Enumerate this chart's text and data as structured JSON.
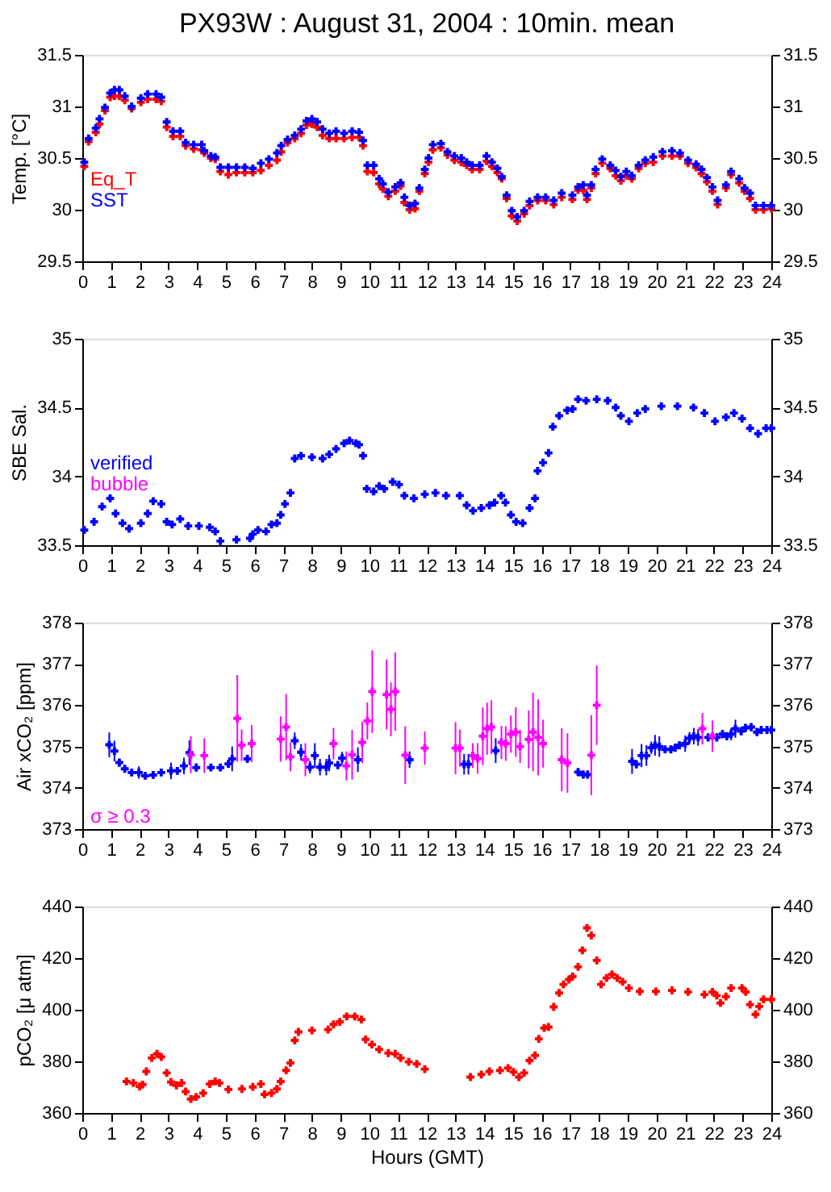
{
  "chart_data": [
    {
      "type": "scatter",
      "title": "PX93W : August 31, 2004 : 10min. mean",
      "ylabel": "Temp. [°C]",
      "xlim": [
        0,
        24
      ],
      "xticks": [
        0,
        1,
        2,
        3,
        4,
        5,
        6,
        7,
        8,
        9,
        10,
        11,
        12,
        13,
        14,
        15,
        16,
        17,
        18,
        19,
        20,
        21,
        22,
        23,
        24
      ],
      "ylim": [
        29.5,
        31.5
      ],
      "yticks": [
        29.5,
        30,
        30.5,
        31,
        31.5
      ],
      "y2lim": [
        29.5,
        31.5
      ],
      "y2ticks": [
        29.5,
        30,
        30.5,
        31,
        31.5
      ],
      "marker": "cross",
      "legend": "bottom left",
      "grid": false,
      "x": [
        0.07,
        0.22,
        0.47,
        0.6,
        0.79,
        0.97,
        1.12,
        1.29,
        1.48,
        1.72,
        2.04,
        2.28,
        2.57,
        2.75,
        2.94,
        3.16,
        3.41,
        3.6,
        3.88,
        4.16,
        4.25,
        4.48,
        4.63,
        4.81,
        5.09,
        5.37,
        5.66,
        5.94,
        6.22,
        6.5,
        6.78,
        6.93,
        7.15,
        7.4,
        7.62,
        7.81,
        8.0,
        8.18,
        8.37,
        8.6,
        8.84,
        9.12,
        9.4,
        9.64,
        9.78,
        9.93,
        10.15,
        10.34,
        10.47,
        10.66,
        10.9,
        11.09,
        11.22,
        11.4,
        11.59,
        11.74,
        11.93,
        12.06,
        12.21,
        12.49,
        12.72,
        12.96,
        13.2,
        13.39,
        13.58,
        13.84,
        14.08,
        14.27,
        14.46,
        14.61,
        14.78,
        14.96,
        15.15,
        15.39,
        15.58,
        15.86,
        16.14,
        16.42,
        16.7,
        17.07,
        17.27,
        17.45,
        17.58,
        17.73,
        17.88,
        18.11,
        18.39,
        18.58,
        18.76,
        18.95,
        19.14,
        19.38,
        19.61,
        19.89,
        20.21,
        20.54,
        20.82,
        21.1,
        21.38,
        21.57,
        21.76,
        21.95,
        22.13,
        22.42,
        22.6,
        22.88,
        23.07,
        23.26,
        23.45,
        23.73,
        24.0
      ],
      "series": [
        {
          "name": "Eq_T",
          "color": "#ff0000",
          "values": [
            30.42,
            30.66,
            30.75,
            30.83,
            30.96,
            31.09,
            31.1,
            31.1,
            31.06,
            30.98,
            31.04,
            31.07,
            31.07,
            31.05,
            30.8,
            30.71,
            30.71,
            30.62,
            30.59,
            30.58,
            30.55,
            30.5,
            30.49,
            30.37,
            30.34,
            30.36,
            30.36,
            30.36,
            30.38,
            30.43,
            30.48,
            30.56,
            30.65,
            30.69,
            30.74,
            30.82,
            30.83,
            30.8,
            30.72,
            30.69,
            30.69,
            30.69,
            30.7,
            30.7,
            30.62,
            30.37,
            30.36,
            30.25,
            30.2,
            30.13,
            30.18,
            30.23,
            30.07,
            30.0,
            30.01,
            30.18,
            30.35,
            30.46,
            30.58,
            30.6,
            30.53,
            30.48,
            30.46,
            30.43,
            30.39,
            30.39,
            30.47,
            30.42,
            30.36,
            30.3,
            30.11,
            29.94,
            29.89,
            29.96,
            30.04,
            30.09,
            30.09,
            30.05,
            30.12,
            30.1,
            30.19,
            30.19,
            30.1,
            30.21,
            30.35,
            30.45,
            30.4,
            30.33,
            30.28,
            30.33,
            30.3,
            30.4,
            30.45,
            30.46,
            30.52,
            30.52,
            30.52,
            30.45,
            30.41,
            30.35,
            30.27,
            30.18,
            30.05,
            30.21,
            30.34,
            30.26,
            30.18,
            30.11,
            30.0,
            30.0,
            30.01
          ]
        },
        {
          "name": "SST",
          "color": "#0000ff",
          "values": [
            30.46,
            30.69,
            30.79,
            30.88,
            30.99,
            31.13,
            31.16,
            31.16,
            31.1,
            31.0,
            31.08,
            31.12,
            31.12,
            31.09,
            30.85,
            30.76,
            30.76,
            30.65,
            30.63,
            30.63,
            30.57,
            30.52,
            30.51,
            30.41,
            30.41,
            30.41,
            30.41,
            30.4,
            30.45,
            30.49,
            30.55,
            30.62,
            30.68,
            30.72,
            30.78,
            30.86,
            30.88,
            30.85,
            30.78,
            30.74,
            30.76,
            30.74,
            30.76,
            30.75,
            30.67,
            30.43,
            30.43,
            30.3,
            30.25,
            30.17,
            30.22,
            30.26,
            30.12,
            30.04,
            30.06,
            30.21,
            30.39,
            30.5,
            30.63,
            30.64,
            30.56,
            30.52,
            30.5,
            30.46,
            30.43,
            30.43,
            30.52,
            30.46,
            30.4,
            30.32,
            30.14,
            29.99,
            29.93,
            29.99,
            30.08,
            30.12,
            30.12,
            30.09,
            30.16,
            30.14,
            30.22,
            30.24,
            30.14,
            30.24,
            30.39,
            30.49,
            30.43,
            30.38,
            30.32,
            30.37,
            30.33,
            30.43,
            30.48,
            30.51,
            30.56,
            30.57,
            30.55,
            30.48,
            30.44,
            30.39,
            30.31,
            30.22,
            30.09,
            30.24,
            30.37,
            30.3,
            30.21,
            30.16,
            30.04,
            30.04,
            30.04
          ]
        }
      ]
    },
    {
      "type": "scatter",
      "ylabel": "SBE Sal.",
      "xlim": [
        0,
        24
      ],
      "xticks": [
        0,
        1,
        2,
        3,
        4,
        5,
        6,
        7,
        8,
        9,
        10,
        11,
        12,
        13,
        14,
        15,
        16,
        17,
        18,
        19,
        20,
        21,
        22,
        23,
        24
      ],
      "ylim": [
        33.5,
        35
      ],
      "yticks": [
        33.5,
        34,
        34.5,
        35
      ],
      "y2lim": [
        33.5,
        35
      ],
      "y2ticks": [
        33.5,
        34,
        34.5,
        35
      ],
      "marker": "cross",
      "legend": "bottom left",
      "grid": false,
      "series": [
        {
          "name": "verified",
          "color": "#0000ff",
          "x": [
            0.07,
            0.41,
            0.69,
            0.97,
            1.16,
            1.4,
            1.63,
            2.04,
            2.28,
            2.47,
            2.75,
            2.94,
            3.13,
            3.41,
            3.69,
            4.06,
            4.44,
            4.63,
            4.81,
            5.37,
            5.84,
            5.94,
            6.12,
            6.4,
            6.59,
            6.78,
            6.91,
            7.06,
            7.25,
            7.4,
            7.62,
            8.0,
            8.37,
            8.6,
            8.84,
            9.12,
            9.31,
            9.53,
            9.64,
            9.78,
            9.91,
            10.15,
            10.34,
            10.52,
            10.81,
            11.03,
            11.22,
            11.55,
            11.93,
            12.3,
            12.67,
            13.15,
            13.39,
            13.61,
            13.9,
            14.18,
            14.36,
            14.59,
            14.74,
            14.93,
            15.11,
            15.34,
            15.58,
            15.77,
            15.86,
            16.05,
            16.24,
            16.39,
            16.61,
            16.89,
            17.08,
            17.27,
            17.55,
            17.92,
            18.3,
            18.58,
            18.76,
            19.04,
            19.33,
            19.61,
            20.17,
            20.73,
            21.29,
            21.67,
            22.04,
            22.42,
            22.7,
            22.98,
            23.26,
            23.54,
            23.82,
            24.0
          ],
          "values": [
            33.61,
            33.67,
            33.78,
            33.84,
            33.73,
            33.66,
            33.62,
            33.66,
            33.73,
            33.82,
            33.8,
            33.67,
            33.65,
            33.69,
            33.64,
            33.64,
            33.63,
            33.6,
            33.53,
            33.54,
            33.55,
            33.58,
            33.61,
            33.6,
            33.65,
            33.66,
            33.72,
            33.8,
            33.88,
            34.13,
            34.15,
            34.14,
            34.13,
            34.16,
            34.2,
            34.24,
            34.26,
            34.24,
            34.23,
            34.15,
            33.91,
            33.89,
            33.93,
            33.91,
            33.96,
            33.94,
            33.86,
            33.84,
            33.87,
            33.88,
            33.86,
            33.86,
            33.79,
            33.75,
            33.77,
            33.79,
            33.81,
            33.86,
            33.81,
            33.72,
            33.67,
            33.66,
            33.77,
            33.84,
            34.04,
            34.1,
            34.17,
            34.36,
            34.44,
            34.48,
            34.49,
            34.56,
            34.55,
            34.56,
            34.55,
            34.5,
            34.44,
            34.4,
            34.46,
            34.49,
            34.51,
            34.51,
            34.5,
            34.46,
            34.4,
            34.43,
            34.46,
            34.42,
            34.35,
            34.31,
            34.35,
            34.35
          ]
        },
        {
          "name": "bubble",
          "color": "#ff00ff"
        }
      ]
    },
    {
      "type": "scatter",
      "ylabel": "Air xCO₂ [ppm]",
      "xlim": [
        0,
        24
      ],
      "xticks": [
        0,
        1,
        2,
        3,
        4,
        5,
        6,
        7,
        8,
        9,
        10,
        11,
        12,
        13,
        14,
        15,
        16,
        17,
        18,
        19,
        20,
        21,
        22,
        23,
        24
      ],
      "ylim": [
        373,
        378
      ],
      "yticks": [
        373,
        374,
        375,
        376,
        377,
        378
      ],
      "y2lim": [
        373,
        378
      ],
      "y2ticks": [
        373,
        374,
        375,
        376,
        377,
        378
      ],
      "marker": "cross",
      "legend": "bottom left",
      "grid": false,
      "series": [
        {
          "color": "#0000ff",
          "x": [
            0.94,
            1.12,
            1.29,
            1.48,
            1.72,
            1.97,
            2.19,
            2.47,
            2.75,
            3.09,
            3.31,
            3.54,
            3.73,
            3.97,
            4.48,
            4.81,
            5.09,
            5.22,
            5.75,
            7.4,
            7.62,
            7.93,
            8.1,
            8.28,
            8.5,
            8.6,
            8.9,
            9.05,
            9.6,
            11.4,
            13.3,
            13.45,
            14.4,
            17.27,
            17.45,
            17.6,
            19.15,
            19.3,
            19.48,
            19.65,
            19.82,
            19.95,
            20.1,
            20.3,
            20.5,
            20.65,
            20.8,
            21.0,
            21.15,
            21.3,
            21.45,
            21.8,
            22.1,
            22.3,
            22.45,
            22.6,
            22.75,
            22.95,
            23.1,
            23.3,
            23.5,
            23.65,
            23.85,
            24.0
          ],
          "values": [
            375.04,
            374.89,
            374.61,
            374.46,
            374.37,
            374.37,
            374.29,
            374.31,
            374.37,
            374.41,
            374.41,
            374.53,
            374.85,
            374.49,
            374.49,
            374.49,
            374.58,
            374.7,
            374.7,
            375.14,
            374.86,
            374.5,
            374.78,
            374.5,
            374.5,
            374.6,
            374.55,
            374.72,
            374.68,
            374.68,
            374.57,
            374.57,
            374.9,
            374.38,
            374.32,
            374.32,
            374.64,
            374.57,
            374.78,
            374.78,
            374.97,
            375.03,
            375.0,
            374.93,
            374.93,
            374.97,
            375.03,
            375.07,
            375.2,
            375.25,
            375.22,
            375.22,
            375.22,
            375.3,
            375.25,
            375.3,
            375.43,
            375.37,
            375.45,
            375.47,
            375.35,
            375.4,
            375.4,
            375.4
          ],
          "errors": [
            0.3,
            0.25,
            0.1,
            0.05,
            0.05,
            0.15,
            0.05,
            0.05,
            0.05,
            0.2,
            0.05,
            0.2,
            0.3,
            0.1,
            0.05,
            0.05,
            0.1,
            0.3,
            0.1,
            0.2,
            0.2,
            0.15,
            0.3,
            0.2,
            0.2,
            0.2,
            0.1,
            0.15,
            0.3,
            0.2,
            0.25,
            0.25,
            0.3,
            0.1,
            0.1,
            0.1,
            0.3,
            0.1,
            0.28,
            0.25,
            0.15,
            0.25,
            0.25,
            0.05,
            0.1,
            0.1,
            0.1,
            0.2,
            0.15,
            0.2,
            0.2,
            0.1,
            0.1,
            0.1,
            0.1,
            0.15,
            0.22,
            0.1,
            0.1,
            0.1,
            0.1,
            0.1,
            0.1,
            0.05
          ]
        },
        {
          "name": "σ ≥ 0.3",
          "color": "#ff00ff",
          "x": [
            3.78,
            4.25,
            5.4,
            5.55,
            5.9,
            6.91,
            7.1,
            7.25,
            7.77,
            8.75,
            9.2,
            9.4,
            9.75,
            9.93,
            10.1,
            10.6,
            10.75,
            10.9,
            11.25,
            11.93,
            13.0,
            13.15,
            13.6,
            13.77,
            13.95,
            14.1,
            14.25,
            14.6,
            14.75,
            14.93,
            15.1,
            15.25,
            15.55,
            15.7,
            15.88,
            16.05,
            16.7,
            16.9,
            17.73,
            17.92,
            21.6,
            21.95
          ],
          "values": [
            374.8,
            374.78,
            375.68,
            375.03,
            375.07,
            375.18,
            375.47,
            374.75,
            374.68,
            375.07,
            374.53,
            374.8,
            375.1,
            375.62,
            376.33,
            376.26,
            375.9,
            376.33,
            374.79,
            374.96,
            374.96,
            374.96,
            374.78,
            374.71,
            375.25,
            375.43,
            375.47,
            375.1,
            375.07,
            375.3,
            375.35,
            375.0,
            375.17,
            375.35,
            375.22,
            375.07,
            374.68,
            374.6,
            374.79,
            376.0,
            375.43,
            375.25
          ],
          "errors": [
            0.45,
            0.42,
            1.05,
            0.38,
            0.45,
            0.55,
            0.8,
            0.35,
            0.4,
            0.38,
            0.35,
            0.6,
            0.5,
            0.45,
            1.0,
            0.85,
            0.65,
            0.95,
            0.7,
            0.4,
            0.63,
            0.45,
            0.3,
            0.37,
            0.7,
            0.63,
            0.65,
            0.4,
            0.42,
            0.45,
            0.6,
            0.4,
            0.7,
            0.95,
            0.92,
            0.58,
            0.76,
            0.72,
            0.97,
            0.96,
            0.38,
            0.38
          ]
        }
      ]
    },
    {
      "type": "scatter",
      "ylabel": "pCO₂ [μ atm]",
      "xlabel": "Hours (GMT)",
      "xlim": [
        0,
        24
      ],
      "xticks": [
        0,
        1,
        2,
        3,
        4,
        5,
        6,
        7,
        8,
        9,
        10,
        11,
        12,
        13,
        14,
        15,
        16,
        17,
        18,
        19,
        20,
        21,
        22,
        23,
        24
      ],
      "ylim": [
        360,
        440
      ],
      "yticks": [
        360,
        380,
        400,
        420,
        440
      ],
      "y2lim": [
        360,
        440
      ],
      "y2ticks": [
        360,
        380,
        400,
        420,
        440
      ],
      "marker": "cross",
      "grid": false,
      "series": [
        {
          "color": "#ff0000",
          "x": [
            1.54,
            1.78,
            2.0,
            2.1,
            2.23,
            2.42,
            2.6,
            2.75,
            2.94,
            3.09,
            3.28,
            3.46,
            3.6,
            3.78,
            3.97,
            4.21,
            4.44,
            4.63,
            4.78,
            5.09,
            5.56,
            5.94,
            6.22,
            6.35,
            6.59,
            6.78,
            6.91,
            7.1,
            7.25,
            7.4,
            7.53,
            8.0,
            8.56,
            8.75,
            8.97,
            9.21,
            9.49,
            9.72,
            9.87,
            10.09,
            10.34,
            10.66,
            10.9,
            11.09,
            11.37,
            11.65,
            11.93,
            13.52,
            13.9,
            14.18,
            14.55,
            14.83,
            15.02,
            15.21,
            15.39,
            15.58,
            15.77,
            15.9,
            16.09,
            16.24,
            16.42,
            16.61,
            16.76,
            16.95,
            17.08,
            17.27,
            17.42,
            17.58,
            17.73,
            17.92,
            18.07,
            18.26,
            18.45,
            18.63,
            18.82,
            19.04,
            19.42,
            19.98,
            20.54,
            21.1,
            21.67,
            21.95,
            22.1,
            22.23,
            22.42,
            22.6,
            22.98,
            23.11,
            23.26,
            23.45,
            23.58,
            23.73,
            24.0
          ],
          "values": [
            372.2,
            371.6,
            370.3,
            371.0,
            376.1,
            381.3,
            382.9,
            381.7,
            375.5,
            372.0,
            370.7,
            371.6,
            368.3,
            365.4,
            366.2,
            367.7,
            371.2,
            372.2,
            371.6,
            369.1,
            369.3,
            370.1,
            371.2,
            367.2,
            367.7,
            369.3,
            372.2,
            376.5,
            379.4,
            388.1,
            391.4,
            392.0,
            392.3,
            394.3,
            395.3,
            397.4,
            397.4,
            396.2,
            388.5,
            386.5,
            384.6,
            383.2,
            382.9,
            381.3,
            379.8,
            379.0,
            377.0,
            373.9,
            374.9,
            376.1,
            376.5,
            377.4,
            375.9,
            373.9,
            375.5,
            380.3,
            382.3,
            388.7,
            392.9,
            393.3,
            401.1,
            406.5,
            409.8,
            411.7,
            412.9,
            416.6,
            423.0,
            431.7,
            428.8,
            419.1,
            409.8,
            412.3,
            413.7,
            412.3,
            410.8,
            408.4,
            407.1,
            407.1,
            407.5,
            406.9,
            405.9,
            406.9,
            405.5,
            402.6,
            405.1,
            408.4,
            408.4,
            406.9,
            402.0,
            398.2,
            401.3,
            404.0,
            404.0
          ]
        }
      ]
    }
  ]
}
